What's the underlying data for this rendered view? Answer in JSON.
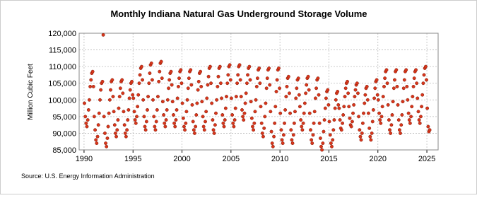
{
  "chart_data": {
    "type": "scatter",
    "title": "Monthly Indiana Natural Gas Underground Storage Volume",
    "y_label": "Million Cubic Feet",
    "source": "Source: U.S. Energy Information Administration",
    "color": "#d8361b",
    "grid": true,
    "xlim": [
      1989.5,
      2026.15
    ],
    "xticks": [
      1990,
      1995,
      2000,
      2005,
      2010,
      2015,
      2020,
      2025
    ],
    "ylim": [
      85000,
      120000
    ],
    "yticks": [
      {
        "value": 85000,
        "label": "85,000"
      },
      {
        "value": 90000,
        "label": "90,000"
      },
      {
        "value": 95000,
        "label": "95,000"
      },
      {
        "value": 100000,
        "label": "100,000"
      },
      {
        "value": 105000,
        "label": "105,000"
      },
      {
        "value": 110000,
        "label": "110,000"
      },
      {
        "value": 115000,
        "label": "115,000"
      },
      {
        "value": 120000,
        "label": "120,000"
      }
    ],
    "x": [
      1990.04,
      1990.13,
      1990.21,
      1990.29,
      1990.38,
      1990.46,
      1990.54,
      1990.63,
      1990.71,
      1990.79,
      1990.88,
      1990.96,
      1991.04,
      1991.13,
      1991.21,
      1991.29,
      1991.38,
      1991.46,
      1991.54,
      1991.63,
      1991.71,
      1991.79,
      1991.88,
      1991.96,
      1992.04,
      1992.13,
      1992.21,
      1992.29,
      1992.38,
      1992.46,
      1992.54,
      1992.63,
      1992.71,
      1992.79,
      1992.88,
      1992.96,
      1993.04,
      1993.13,
      1993.21,
      1993.29,
      1993.38,
      1993.46,
      1993.54,
      1993.63,
      1993.71,
      1993.79,
      1993.88,
      1993.96,
      1994.04,
      1994.13,
      1994.21,
      1994.29,
      1994.38,
      1994.46,
      1994.54,
      1994.63,
      1994.71,
      1994.79,
      1994.88,
      1994.96,
      1995.04,
      1995.13,
      1995.21,
      1995.29,
      1995.38,
      1995.46,
      1995.54,
      1995.63,
      1995.71,
      1995.79,
      1995.88,
      1995.96,
      1996.04,
      1996.13,
      1996.21,
      1996.29,
      1996.38,
      1996.46,
      1996.54,
      1996.63,
      1996.71,
      1996.79,
      1996.88,
      1996.96,
      1997.04,
      1997.13,
      1997.21,
      1997.29,
      1997.38,
      1997.46,
      1997.54,
      1997.63,
      1997.71,
      1997.79,
      1997.88,
      1997.96,
      1998.04,
      1998.13,
      1998.21,
      1998.29,
      1998.38,
      1998.46,
      1998.54,
      1998.63,
      1998.71,
      1998.79,
      1998.88,
      1998.96,
      1999.04,
      1999.13,
      1999.21,
      1999.29,
      1999.38,
      1999.46,
      1999.54,
      1999.63,
      1999.71,
      1999.79,
      1999.88,
      1999.96,
      2000.04,
      2000.13,
      2000.21,
      2000.29,
      2000.38,
      2000.46,
      2000.54,
      2000.63,
      2000.71,
      2000.79,
      2000.88,
      2000.96,
      2001.04,
      2001.13,
      2001.21,
      2001.29,
      2001.38,
      2001.46,
      2001.54,
      2001.63,
      2001.71,
      2001.79,
      2001.88,
      2001.96,
      2002.04,
      2002.13,
      2002.21,
      2002.29,
      2002.38,
      2002.46,
      2002.54,
      2002.63,
      2002.71,
      2002.79,
      2002.88,
      2002.96,
      2003.04,
      2003.13,
      2003.21,
      2003.29,
      2003.38,
      2003.46,
      2003.54,
      2003.63,
      2003.71,
      2003.79,
      2003.88,
      2003.96,
      2004.04,
      2004.13,
      2004.21,
      2004.29,
      2004.38,
      2004.46,
      2004.54,
      2004.63,
      2004.71,
      2004.79,
      2004.88,
      2004.96,
      2005.04,
      2005.13,
      2005.21,
      2005.29,
      2005.38,
      2005.46,
      2005.54,
      2005.63,
      2005.71,
      2005.79,
      2005.88,
      2005.96,
      2006.04,
      2006.13,
      2006.21,
      2006.29,
      2006.38,
      2006.46,
      2006.54,
      2006.63,
      2006.71,
      2006.79,
      2006.88,
      2006.96,
      2007.04,
      2007.13,
      2007.21,
      2007.29,
      2007.38,
      2007.46,
      2007.54,
      2007.63,
      2007.71,
      2007.79,
      2007.88,
      2007.96,
      2008.04,
      2008.13,
      2008.21,
      2008.29,
      2008.38,
      2008.46,
      2008.54,
      2008.63,
      2008.71,
      2008.79,
      2008.88,
      2008.96,
      2009.04,
      2009.13,
      2009.21,
      2009.29,
      2009.38,
      2009.46,
      2009.54,
      2009.63,
      2009.71,
      2009.79,
      2009.88,
      2009.96,
      2010.04,
      2010.13,
      2010.21,
      2010.29,
      2010.38,
      2010.46,
      2010.54,
      2010.63,
      2010.71,
      2010.79,
      2010.88,
      2010.96,
      2011.04,
      2011.13,
      2011.21,
      2011.29,
      2011.38,
      2011.46,
      2011.54,
      2011.63,
      2011.71,
      2011.79,
      2011.88,
      2011.96,
      2012.04,
      2012.13,
      2012.21,
      2012.29,
      2012.38,
      2012.46,
      2012.54,
      2012.63,
      2012.71,
      2012.79,
      2012.88,
      2012.96,
      2013.04,
      2013.13,
      2013.21,
      2013.29,
      2013.38,
      2013.46,
      2013.54,
      2013.63,
      2013.71,
      2013.79,
      2013.88,
      2013.96,
      2014.04,
      2014.13,
      2014.21,
      2014.29,
      2014.38,
      2014.46,
      2014.54,
      2014.63,
      2014.71,
      2014.79,
      2014.88,
      2014.96,
      2015.04,
      2015.13,
      2015.21,
      2015.29,
      2015.38,
      2015.46,
      2015.54,
      2015.63,
      2015.71,
      2015.79,
      2015.88,
      2015.96,
      2016.04,
      2016.13,
      2016.21,
      2016.29,
      2016.38,
      2016.46,
      2016.54,
      2016.63,
      2016.71,
      2016.79,
      2016.88,
      2016.96,
      2017.04,
      2017.13,
      2017.21,
      2017.29,
      2017.38,
      2017.46,
      2017.54,
      2017.63,
      2017.71,
      2017.79,
      2017.88,
      2017.96,
      2018.04,
      2018.13,
      2018.21,
      2018.29,
      2018.38,
      2018.46,
      2018.54,
      2018.63,
      2018.71,
      2018.79,
      2018.88,
      2018.96,
      2019.04,
      2019.13,
      2019.21,
      2019.29,
      2019.38,
      2019.46,
      2019.54,
      2019.63,
      2019.71,
      2019.79,
      2019.88,
      2019.96,
      2020.04,
      2020.13,
      2020.21,
      2020.29,
      2020.38,
      2020.46,
      2020.54,
      2020.63,
      2020.71,
      2020.79,
      2020.88,
      2020.96,
      2021.04,
      2021.13,
      2021.21,
      2021.29,
      2021.38,
      2021.46,
      2021.54,
      2021.63,
      2021.71,
      2021.79,
      2021.88,
      2021.96,
      2022.04,
      2022.13,
      2022.21,
      2022.29,
      2022.38,
      2022.46,
      2022.54,
      2022.63,
      2022.71,
      2022.79,
      2022.88,
      2022.96,
      2023.04,
      2023.13,
      2023.21,
      2023.29,
      2023.38,
      2023.46,
      2023.54,
      2023.63,
      2023.71,
      2023.79,
      2023.88,
      2023.96,
      2024.04,
      2024.13,
      2024.21,
      2024.29,
      2024.38,
      2024.46,
      2024.54,
      2024.63,
      2024.71,
      2024.79,
      2024.88,
      2024.96,
      2025.04,
      2025.13,
      2025.21,
      2025.29
    ],
    "values": [
      99000,
      95000,
      93000,
      92000,
      94000,
      97000,
      100000,
      104000,
      106000,
      108000,
      108500,
      104000,
      95000,
      91000,
      88000,
      87000,
      89000,
      92500,
      96000,
      100000,
      103000,
      105000,
      105500,
      119500,
      95000,
      90000,
      87000,
      86000,
      88500,
      92000,
      96000,
      100000,
      103000,
      105500,
      106000,
      101000,
      96500,
      92500,
      90000,
      89000,
      91000,
      94000,
      97500,
      101000,
      103500,
      105500,
      106000,
      102000,
      96500,
      92500,
      90000,
      89000,
      91000,
      94000,
      97000,
      100500,
      103000,
      105000,
      105500,
      101500,
      100500,
      96500,
      94000,
      93000,
      95000,
      98000,
      101500,
      105000,
      107500,
      109500,
      110000,
      106000,
      100000,
      95000,
      92000,
      91000,
      93500,
      97000,
      101000,
      105000,
      108000,
      110500,
      111000,
      106000,
      100000,
      95000,
      92000,
      91000,
      93500,
      97000,
      101000,
      105500,
      108500,
      111000,
      111500,
      106500,
      99500,
      95500,
      93000,
      92000,
      94000,
      97000,
      100000,
      103500,
      106000,
      108000,
      108500,
      104500,
      99500,
      95500,
      93000,
      92000,
      94000,
      97000,
      100500,
      104000,
      106500,
      108500,
      109000,
      105000,
      99000,
      94500,
      92000,
      91000,
      93000,
      96500,
      100000,
      103500,
      106500,
      108500,
      109000,
      104500,
      98500,
      93500,
      91000,
      90000,
      92000,
      95500,
      99000,
      103000,
      105500,
      108000,
      108500,
      104000,
      99500,
      95000,
      92000,
      91000,
      93500,
      96500,
      100500,
      104500,
      107000,
      109500,
      110000,
      105000,
      99000,
      94000,
      91000,
      90000,
      92500,
      96000,
      100000,
      104000,
      107000,
      109500,
      110000,
      105000,
      100500,
      95500,
      93000,
      92000,
      94000,
      97500,
      101000,
      105000,
      107500,
      110000,
      110500,
      106000,
      100500,
      95500,
      93000,
      92000,
      94000,
      97500,
      101000,
      105000,
      107500,
      110000,
      110500,
      106000,
      101000,
      97000,
      95000,
      94000,
      96000,
      99000,
      102000,
      105000,
      107500,
      109500,
      110000,
      106000,
      99500,
      94500,
      92000,
      91000,
      93000,
      96500,
      100000,
      104000,
      106500,
      109000,
      109500,
      105000,
      98000,
      93000,
      90000,
      89000,
      91500,
      95000,
      99000,
      103500,
      106500,
      109000,
      109500,
      104500,
      96500,
      90500,
      87000,
      86000,
      89000,
      93000,
      98000,
      102500,
      106000,
      109000,
      109500,
      103500,
      96000,
      91000,
      88000,
      87000,
      89500,
      93000,
      97000,
      101000,
      104000,
      106500,
      107000,
      102000,
      96000,
      91000,
      88000,
      87000,
      89500,
      93000,
      96500,
      100500,
      103500,
      106000,
      106500,
      101500,
      98000,
      94000,
      92000,
      91000,
      93000,
      96000,
      99000,
      102000,
      104500,
      106500,
      107000,
      103000,
      96000,
      91000,
      88000,
      87000,
      89500,
      93000,
      96500,
      100500,
      103500,
      106000,
      106500,
      101500,
      93000,
      88500,
      86000,
      85000,
      87000,
      90500,
      94000,
      97500,
      100500,
      102500,
      103000,
      98500,
      93500,
      89500,
      87000,
      86000,
      88000,
      91000,
      94000,
      97500,
      100000,
      102000,
      102500,
      98500,
      97500,
      94000,
      91500,
      91000,
      93000,
      95500,
      98000,
      101000,
      103500,
      105000,
      105500,
      102000,
      98000,
      94500,
      92500,
      92000,
      93500,
      96000,
      98500,
      101000,
      103000,
      104500,
      105000,
      102000,
      95000,
      91000,
      89000,
      88000,
      90000,
      93000,
      96000,
      99000,
      101500,
      103500,
      104000,
      100000,
      96000,
      91500,
      89000,
      88000,
      90000,
      93500,
      97000,
      100500,
      103500,
      105500,
      106000,
      101500,
      100000,
      96000,
      94000,
      93000,
      95000,
      98000,
      101000,
      104000,
      106500,
      108500,
      109000,
      105000,
      98500,
      94000,
      91000,
      90000,
      92500,
      95500,
      99500,
      103500,
      106000,
      108500,
      109000,
      104000,
      98500,
      94000,
      91000,
      90000,
      92500,
      95500,
      99500,
      103500,
      106000,
      108500,
      109000,
      104000,
      100000,
      96000,
      94000,
      93000,
      95000,
      98000,
      101000,
      104000,
      106500,
      108500,
      109000,
      105000,
      100500,
      96500,
      94000,
      93000,
      95000,
      98000,
      101500,
      105000,
      107500,
      109500,
      110000,
      106000,
      97500,
      92000,
      90500,
      91000
    ]
  }
}
